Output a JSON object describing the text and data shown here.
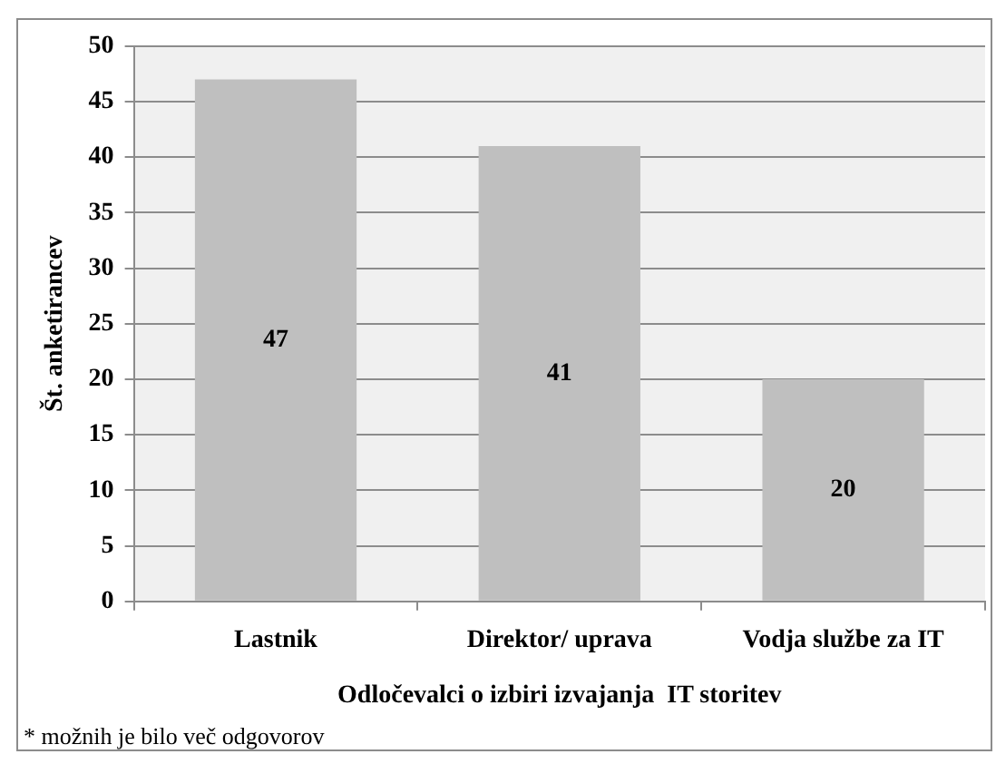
{
  "chart_data": {
    "type": "bar",
    "categories": [
      "Lastnik",
      "Direktor/ uprava",
      "Vodja službe za IT"
    ],
    "values": [
      47,
      41,
      20
    ],
    "color": "#bfbfbf",
    "xlabel": "Odločevalci o izbiri izvajanja  IT storitev",
    "ylabel": "Št. anketirancev",
    "ylim": [
      0,
      50
    ],
    "yticks": [
      0,
      5,
      10,
      15,
      20,
      25,
      30,
      35,
      40,
      45,
      50
    ],
    "grid": "y",
    "data_labels": true,
    "annotations": [
      "* možnih je bilo več odgovorov"
    ]
  }
}
